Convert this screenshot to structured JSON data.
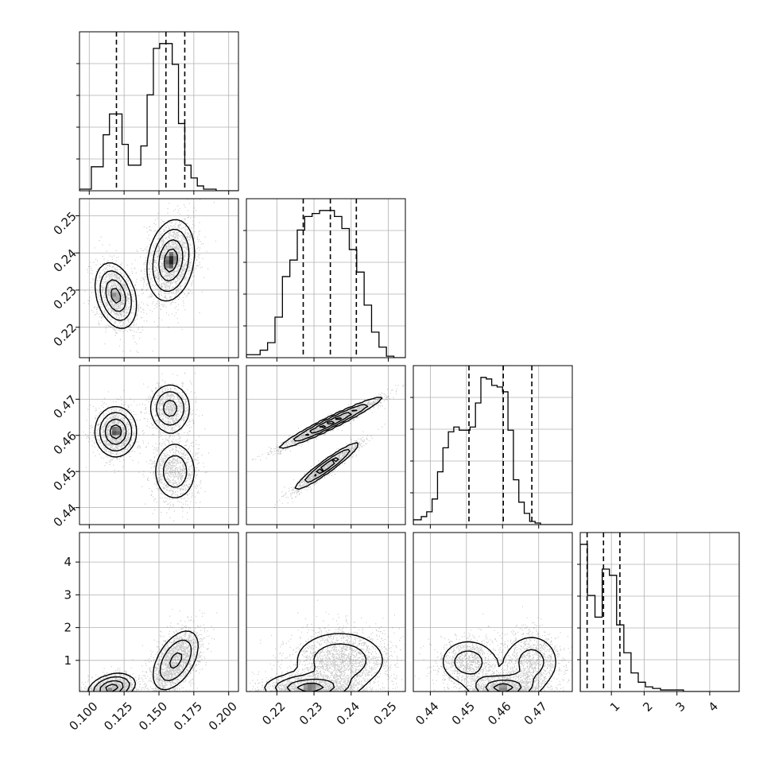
{
  "chart_data": {
    "type": "corner",
    "parameters": 4,
    "grid": true,
    "quantiles": [
      0.16,
      0.5,
      0.84
    ],
    "axes": [
      {
        "range": [
          0.093,
          0.207
        ],
        "ticks": [
          0.1,
          0.125,
          0.15,
          0.175,
          0.2
        ],
        "tick_labels": [
          "0.100",
          "0.125",
          "0.150",
          "0.175",
          "0.200"
        ]
      },
      {
        "range": [
          0.2118,
          0.2546
        ],
        "ticks": [
          0.22,
          0.23,
          0.24,
          0.25
        ],
        "tick_labels": [
          "0.22",
          "0.23",
          "0.24",
          "0.25"
        ]
      },
      {
        "range": [
          0.4353,
          0.4793
        ],
        "ticks": [
          0.44,
          0.45,
          0.46,
          0.47
        ],
        "tick_labels": [
          "0.44",
          "0.45",
          "0.46",
          "0.47"
        ]
      },
      {
        "range": [
          0.05,
          4.9
        ],
        "ticks": [
          1,
          2,
          3,
          4
        ],
        "tick_labels": [
          "1",
          "2",
          "3",
          "4"
        ]
      }
    ],
    "histograms": [
      {
        "param": 0,
        "quantile_lines": [
          0.1195,
          0.155,
          0.1685
        ],
        "bins": [
          0.093,
          0.1015,
          0.11,
          0.1145,
          0.119,
          0.1235,
          0.128,
          0.1325,
          0.137,
          0.1415,
          0.146,
          0.1505,
          0.155,
          0.1595,
          0.164,
          0.1685,
          0.173,
          0.1775,
          0.182,
          0.1865,
          0.191,
          0.1955,
          0.2,
          0.207
        ],
        "counts": [
          1,
          15,
          35,
          48,
          48,
          29,
          16,
          16,
          28,
          60,
          89,
          92,
          92,
          79,
          42,
          16,
          8,
          3,
          1,
          1,
          0,
          0,
          0
        ]
      },
      {
        "param": 1,
        "quantile_lines": [
          0.2271,
          0.2344,
          0.2414
        ],
        "bins": [
          0.2118,
          0.2155,
          0.2175,
          0.2195,
          0.2215,
          0.2235,
          0.2255,
          0.2275,
          0.2295,
          0.2315,
          0.2335,
          0.2355,
          0.2375,
          0.2395,
          0.2415,
          0.2435,
          0.2455,
          0.2475,
          0.2495,
          0.2515,
          0.2546
        ],
        "counts": [
          2,
          5,
          10,
          27,
          54,
          65,
          85,
          94,
          96,
          98,
          98,
          94,
          86,
          72,
          57,
          35,
          17,
          7,
          1,
          0
        ]
      },
      {
        "param": 2,
        "quantile_lines": [
          0.4507,
          0.4602,
          0.4681
        ],
        "bins": [
          0.4353,
          0.4375,
          0.439,
          0.4405,
          0.442,
          0.4435,
          0.445,
          0.4465,
          0.448,
          0.4495,
          0.451,
          0.4525,
          0.454,
          0.4555,
          0.457,
          0.4585,
          0.46,
          0.4615,
          0.463,
          0.4645,
          0.466,
          0.4675,
          0.469,
          0.4705,
          0.472,
          0.4735,
          0.4793
        ],
        "counts": [
          3,
          5,
          8,
          16,
          33,
          48,
          58,
          61,
          59,
          59,
          61,
          76,
          92,
          91,
          87,
          86,
          83,
          59,
          28,
          14,
          7,
          2,
          1,
          0,
          0,
          0
        ]
      },
      {
        "param": 3,
        "quantile_lines": [
          0.26,
          0.76,
          1.26
        ],
        "bins": [
          0.05,
          0.27,
          0.5,
          0.72,
          0.94,
          1.16,
          1.38,
          1.6,
          1.82,
          2.04,
          2.26,
          2.5,
          2.8,
          3.2,
          4.9
        ],
        "counts": [
          95,
          62,
          48,
          79,
          75,
          43,
          25,
          12,
          6,
          3,
          2,
          1,
          1,
          0
        ]
      }
    ],
    "scatter_panels": [
      {
        "x_param": 0,
        "y_param": 1,
        "modes": [
          {
            "mean": [
              0.119,
              0.2285
            ],
            "sd": [
              0.0075,
              0.0045
            ],
            "rho": -0.3,
            "weight": 0.4
          },
          {
            "mean": [
              0.1585,
              0.238
            ],
            "sd": [
              0.0085,
              0.0055
            ],
            "rho": 0.2,
            "weight": 0.6
          }
        ]
      },
      {
        "x_param": 0,
        "y_param": 2,
        "modes": [
          {
            "mean": [
              0.119,
              0.461
            ],
            "sd": [
              0.0075,
              0.0035
            ],
            "rho": 0.0,
            "weight": 0.4
          },
          {
            "mean": [
              0.158,
              0.4675
            ],
            "sd": [
              0.0075,
              0.0035
            ],
            "rho": 0.0,
            "weight": 0.3
          },
          {
            "mean": [
              0.1615,
              0.45
            ],
            "sd": [
              0.0085,
              0.0045
            ],
            "rho": 0.0,
            "weight": 0.3
          }
        ]
      },
      {
        "x_param": 1,
        "y_param": 2,
        "modes": [
          {
            "mean": [
              0.2345,
              0.4635
            ],
            "sd": [
              0.007,
              0.0036
            ],
            "rho": 0.97,
            "weight": 0.6
          },
          {
            "mean": [
              0.2335,
              0.4515
            ],
            "sd": [
              0.0045,
              0.0034
            ],
            "rho": 0.95,
            "weight": 0.4
          }
        ]
      },
      {
        "x_param": 0,
        "y_param": 3,
        "modes": [
          {
            "mean": [
              0.116,
              0.16
            ],
            "sd": [
              0.0085,
              0.22
            ],
            "rho": 0.3,
            "weight": 0.4
          },
          {
            "mean": [
              0.162,
              1.0
            ],
            "sd": [
              0.009,
              0.5
            ],
            "rho": 0.5,
            "weight": 0.6
          }
        ]
      },
      {
        "x_param": 1,
        "y_param": 3,
        "modes": [
          {
            "mean": [
              0.2285,
              0.16
            ],
            "sd": [
              0.006,
              0.22
            ],
            "rho": 0.0,
            "weight": 0.4
          },
          {
            "mean": [
              0.237,
              1.0
            ],
            "sd": [
              0.007,
              0.5
            ],
            "rho": 0.0,
            "weight": 0.6
          }
        ]
      },
      {
        "x_param": 2,
        "y_param": 3,
        "modes": [
          {
            "mean": [
              0.4505,
              0.95
            ],
            "sd": [
              0.0045,
              0.4
            ],
            "rho": 0.0,
            "weight": 0.3
          },
          {
            "mean": [
              0.46,
              0.16
            ],
            "sd": [
              0.0045,
              0.22
            ],
            "rho": 0.0,
            "weight": 0.35
          },
          {
            "mean": [
              0.468,
              0.95
            ],
            "sd": [
              0.0045,
              0.5
            ],
            "rho": 0.0,
            "weight": 0.35
          }
        ]
      }
    ]
  }
}
